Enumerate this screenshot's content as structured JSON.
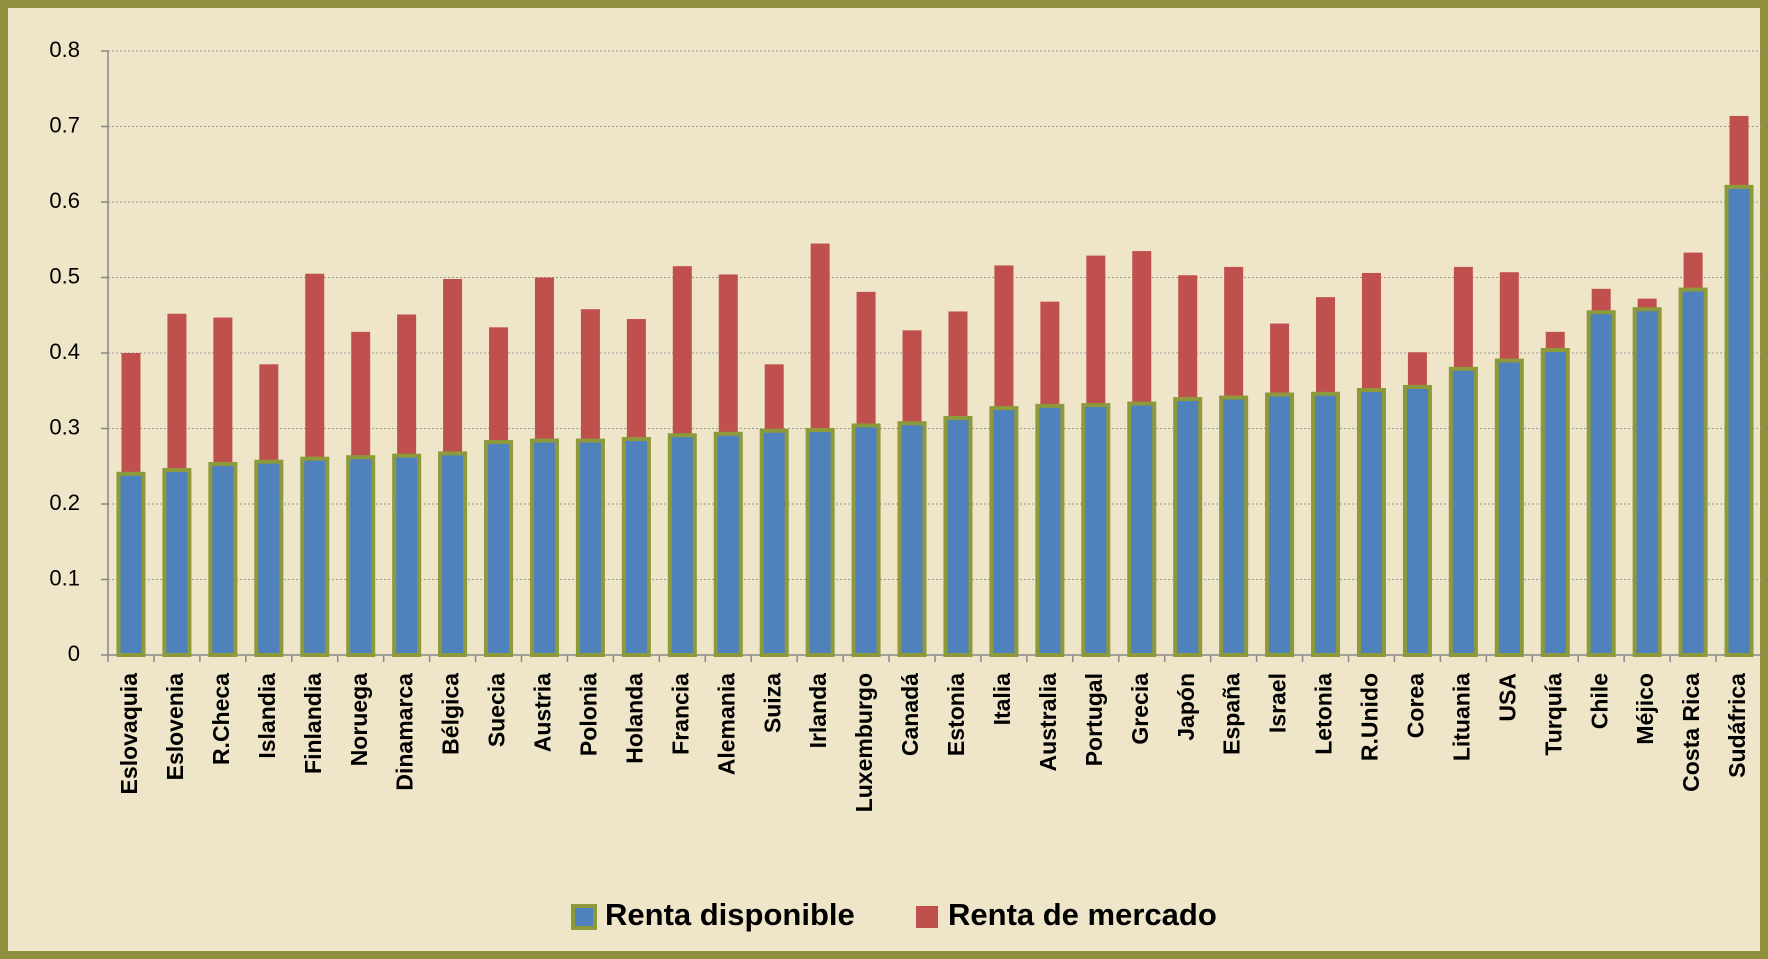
{
  "chart_data": {
    "type": "overlap_bar",
    "categories": [
      "Eslovaquia",
      "Eslovenia",
      "R.Checa",
      "Islandia",
      "Finlandia",
      "Noruega",
      "Dinamarca",
      "Bélgica",
      "Suecia",
      "Austria",
      "Polonia",
      "Holanda",
      "Francia",
      "Alemania",
      "Suiza",
      "Irlanda",
      "Luxemburgo",
      "Canadá",
      "Estonia",
      "Italia",
      "Australia",
      "Portugal",
      "Grecia",
      "Japón",
      "España",
      "Israel",
      "Letonia",
      "R.Unido",
      "Corea",
      "Lituania",
      "USA",
      "Turquía",
      "Chile",
      "Méjico",
      "Costa Rica",
      "Sudáfrica"
    ],
    "series": [
      {
        "name": "Renta disponible",
        "color": "#4f81bd",
        "values": [
          0.24,
          0.245,
          0.253,
          0.256,
          0.26,
          0.262,
          0.264,
          0.267,
          0.282,
          0.284,
          0.284,
          0.286,
          0.291,
          0.293,
          0.297,
          0.298,
          0.304,
          0.307,
          0.314,
          0.327,
          0.33,
          0.331,
          0.333,
          0.339,
          0.341,
          0.345,
          0.346,
          0.351,
          0.355,
          0.379,
          0.39,
          0.404,
          0.454,
          0.458,
          0.484,
          0.62
        ]
      },
      {
        "name": "Renta de mercado",
        "color": "#c0504d",
        "values": [
          0.4,
          0.452,
          0.447,
          0.385,
          0.505,
          0.428,
          0.451,
          0.498,
          0.434,
          0.5,
          0.458,
          0.445,
          0.515,
          0.504,
          0.385,
          0.545,
          0.481,
          0.43,
          0.455,
          0.516,
          0.468,
          0.529,
          0.535,
          0.503,
          0.514,
          0.439,
          0.474,
          0.506,
          0.401,
          0.514,
          0.507,
          0.428,
          0.485,
          0.472,
          0.533,
          0.714
        ]
      }
    ],
    "ylim": [
      0,
      0.8
    ],
    "yticks": [
      0,
      0.1,
      0.2,
      0.3,
      0.4,
      0.5,
      0.6,
      0.7,
      0.8
    ],
    "grid": true,
    "legend": "bottom"
  }
}
